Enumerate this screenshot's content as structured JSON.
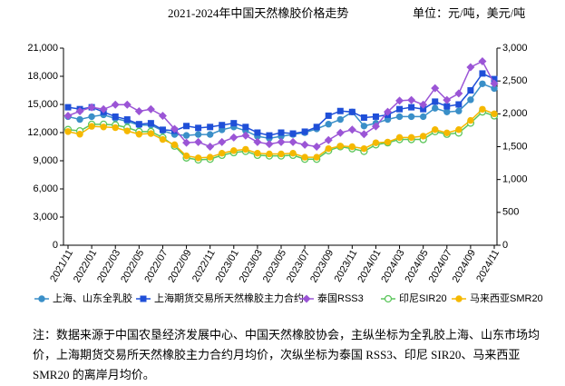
{
  "chart_data": {
    "type": "line",
    "title": "2021-2024年中国天然橡胶价格走势",
    "subtitle": "单位：元/吨，美元/吨",
    "note": "注：数据来源于中国农垦经济发展中心、中国天然橡胶协会，主纵坐标为全乳胶上海、山东市场均价，上海期货交易所天然橡胶主力合约月均价，次纵坐标为泰国 RSS3、印尼 SIR20、马来西亚 SMR20 的离岸月均价。",
    "categories": [
      "2021/11",
      null,
      "2022/01",
      null,
      "2022/03",
      null,
      "2022/05",
      null,
      "2022/07",
      null,
      "2022/09",
      null,
      "2022/11",
      null,
      "2023/01",
      null,
      "2023/03",
      null,
      "2023/05",
      null,
      "2023/07",
      null,
      "2023/09",
      null,
      "2023/11",
      null,
      "2024/01",
      null,
      "2024/03",
      null,
      "2024/05",
      null,
      "2024/07",
      null,
      "2024/09",
      null,
      "2024/11"
    ],
    "ylim": [
      0,
      21000
    ],
    "yticks": [
      0,
      {
        "value": 3000,
        "label": "3,000"
      },
      {
        "value": 6000,
        "label": "6,000"
      },
      {
        "value": 9000,
        "label": "9,000"
      },
      {
        "value": 12000,
        "label": "12,000"
      },
      {
        "value": 15000,
        "label": "15,000"
      },
      {
        "value": 18000,
        "label": "18,000"
      },
      {
        "value": 21000,
        "label": "21,000"
      }
    ],
    "y2lim": [
      0,
      3000
    ],
    "y2ticks": [
      0,
      500,
      {
        "value": 1000,
        "label": "1,000"
      },
      {
        "value": 1500,
        "label": "1,500"
      },
      {
        "value": 2000,
        "label": "2,000"
      },
      {
        "value": 2500,
        "label": "2,500"
      },
      {
        "value": 3000,
        "label": "3,000"
      }
    ],
    "grid": false,
    "legend": "bottom",
    "series": [
      {
        "name": "上海、山东全乳胶",
        "color": "#3a8fc8",
        "marker": "circle",
        "values": [
          13700,
          13400,
          13700,
          13900,
          13500,
          13200,
          12800,
          12800,
          12200,
          11800,
          11700,
          11800,
          11800,
          12300,
          12600,
          12200,
          11600,
          11400,
          11600,
          11800,
          12000,
          12400,
          12900,
          13400,
          14200,
          12700,
          13000,
          13400,
          13700,
          13700,
          13700,
          14600,
          14200,
          14300,
          15500,
          17200,
          16700
        ]
      },
      {
        "name": "上海期货交易所天然橡胶主力合约",
        "color": "#1f4fd8",
        "marker": "square",
        "values": [
          14700,
          14500,
          14700,
          14200,
          13700,
          13400,
          12900,
          13000,
          12300,
          12200,
          12700,
          12500,
          12600,
          12800,
          13000,
          12600,
          12000,
          11700,
          12000,
          11900,
          12100,
          12600,
          13800,
          14300,
          14200,
          13600,
          13700,
          13900,
          14500,
          14700,
          14500,
          15300,
          14800,
          15000,
          16500,
          18300,
          17700
        ]
      },
      {
        "name": "泰国RSS3",
        "color": "#9b55d6",
        "marker": "diamond",
        "axis": "y2",
        "values": [
          1970,
          2040,
          2100,
          2070,
          2140,
          2140,
          2040,
          2070,
          1970,
          1770,
          1560,
          1570,
          1500,
          1570,
          1640,
          1670,
          1570,
          1540,
          1570,
          1570,
          1530,
          1500,
          1600,
          1710,
          1760,
          1690,
          1810,
          2030,
          2200,
          2210,
          2140,
          2390,
          2210,
          2310,
          2710,
          2800,
          2460
        ]
      },
      {
        "name": "印尼SIR20",
        "color": "#5cc65c",
        "marker": "hollow-circle",
        "axis": "y2",
        "values": [
          1760,
          1740,
          1840,
          1840,
          1830,
          1790,
          1730,
          1730,
          1640,
          1510,
          1330,
          1300,
          1310,
          1370,
          1410,
          1430,
          1370,
          1360,
          1360,
          1370,
          1310,
          1310,
          1440,
          1500,
          1470,
          1430,
          1530,
          1560,
          1610,
          1610,
          1610,
          1730,
          1690,
          1710,
          1860,
          2030,
          1970
        ]
      },
      {
        "name": "马来西亚SMR20",
        "color": "#f5b800",
        "marker": "circle",
        "axis": "y2",
        "values": [
          1730,
          1690,
          1810,
          1800,
          1790,
          1740,
          1690,
          1700,
          1610,
          1530,
          1360,
          1330,
          1340,
          1400,
          1440,
          1460,
          1400,
          1390,
          1390,
          1400,
          1340,
          1340,
          1470,
          1510,
          1500,
          1470,
          1560,
          1570,
          1640,
          1640,
          1660,
          1760,
          1710,
          1760,
          1900,
          2070,
          2000
        ]
      }
    ]
  }
}
